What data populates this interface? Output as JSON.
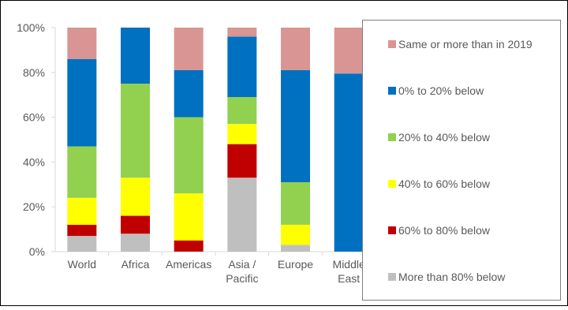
{
  "chart_data": {
    "type": "bar",
    "stacked": true,
    "percent": true,
    "title": "",
    "xlabel": "",
    "ylabel": "",
    "ylim": [
      0,
      100
    ],
    "y_ticks": [
      "0%",
      "20%",
      "40%",
      "60%",
      "80%",
      "100%"
    ],
    "categories": [
      "World",
      "Africa",
      "Americas",
      "Asia / Pacific",
      "Europe",
      "Middle East"
    ],
    "category_lines": [
      [
        "World"
      ],
      [
        "Africa"
      ],
      [
        "Americas"
      ],
      [
        "Asia /",
        "Pacific"
      ],
      [
        "Europe"
      ],
      [
        "Middle",
        "East"
      ]
    ],
    "series": [
      {
        "name": "More than 80% below",
        "color": "#bfbfbf",
        "values": [
          7,
          8,
          0,
          33,
          3,
          0
        ]
      },
      {
        "name": "60% to 80% below",
        "color": "#c00000",
        "values": [
          5,
          8,
          5,
          15,
          0,
          0
        ]
      },
      {
        "name": "40% to 60% below",
        "color": "#ffff00",
        "values": [
          12,
          17,
          21,
          9,
          9,
          0
        ]
      },
      {
        "name": "20% to 40% below",
        "color": "#92d050",
        "values": [
          23,
          42,
          34,
          12,
          19,
          0
        ]
      },
      {
        "name": "0% to 20% below",
        "color": "#0070c0",
        "values": [
          39,
          25,
          21,
          27,
          50,
          79.5
        ]
      },
      {
        "name": "Same or more than in 2019",
        "color": "#d99594",
        "values": [
          14,
          0,
          19,
          4,
          19,
          20.5
        ]
      }
    ],
    "grid": false,
    "legend_position": "right"
  }
}
